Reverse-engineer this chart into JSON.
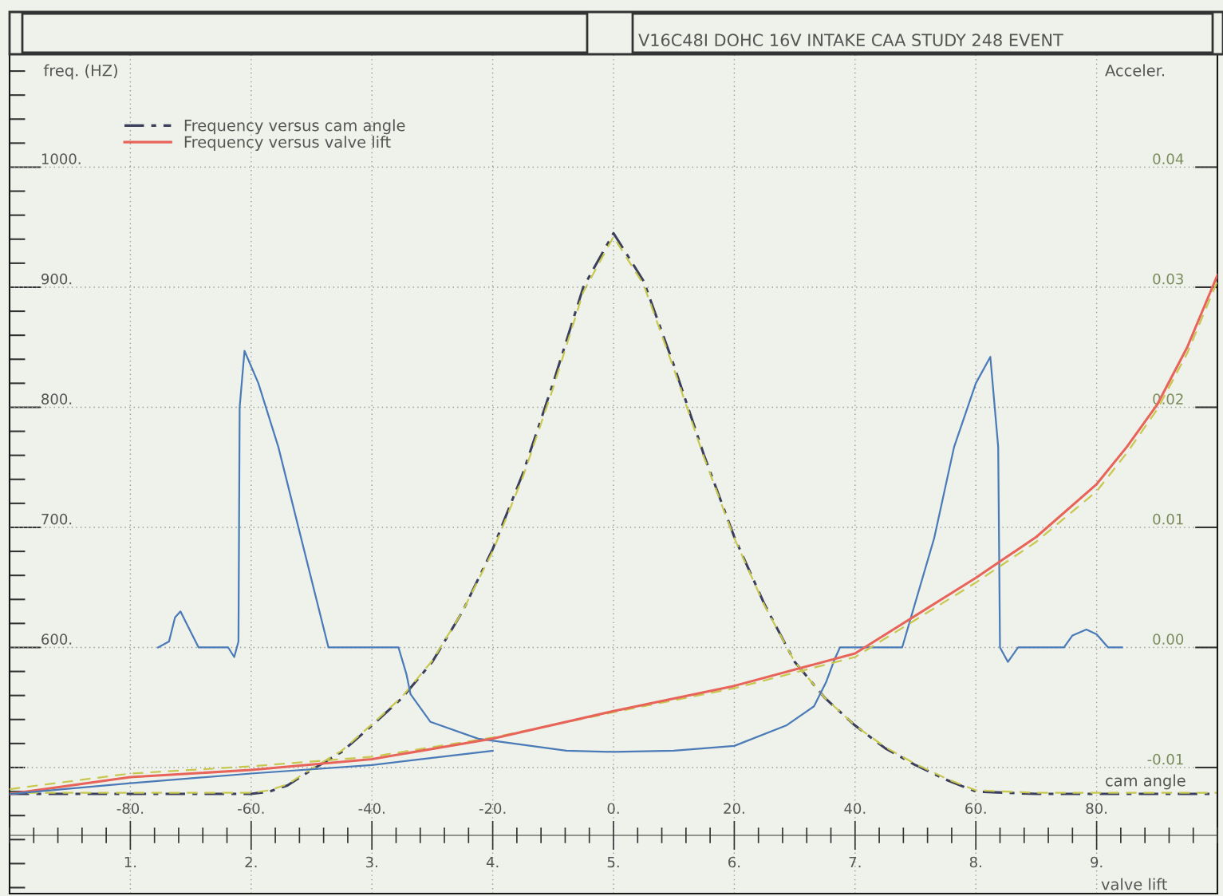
{
  "chart_data": {
    "type": "line",
    "title": "V16C48I DOHC 16V INTAKE CAA STUDY 248 EVENT",
    "xlabel": "cam angle",
    "x2label": "valve lift",
    "ylabel": "freq. (HZ)",
    "y2label": "Acceler.",
    "xlim": [
      -100,
      100
    ],
    "x2lim": [
      0,
      10
    ],
    "ylim": [
      395,
      1094
    ],
    "y2lim": [
      -0.0205,
      0.0494
    ],
    "xticks": [
      {
        "value": -80,
        "label": "-80."
      },
      {
        "value": -60,
        "label": "-60."
      },
      {
        "value": -40,
        "label": "-40."
      },
      {
        "value": -20,
        "label": "-20."
      },
      {
        "value": 0,
        "label": "0."
      },
      {
        "value": 20,
        "label": "20."
      },
      {
        "value": 40,
        "label": "40."
      },
      {
        "value": 60,
        "label": "60."
      },
      {
        "value": 80,
        "label": "80."
      }
    ],
    "x2ticks": [
      {
        "value": 1,
        "label": "1."
      },
      {
        "value": 2,
        "label": "2."
      },
      {
        "value": 3,
        "label": "3."
      },
      {
        "value": 4,
        "label": "4."
      },
      {
        "value": 5,
        "label": "5."
      },
      {
        "value": 6,
        "label": "6."
      },
      {
        "value": 7,
        "label": "7."
      },
      {
        "value": 8,
        "label": "8."
      },
      {
        "value": 9,
        "label": "9."
      }
    ],
    "yticks": [
      {
        "value": 600,
        "label": "600."
      },
      {
        "value": 700,
        "label": "700."
      },
      {
        "value": 800,
        "label": "800."
      },
      {
        "value": 900,
        "label": "900."
      },
      {
        "value": 1000,
        "label": "1000."
      }
    ],
    "y2ticks": [
      {
        "value": -0.01,
        "label": "-0.01"
      },
      {
        "value": 0,
        "label": "0.00"
      },
      {
        "value": 0.01,
        "label": "0.01"
      },
      {
        "value": 0.02,
        "label": "0.02"
      },
      {
        "value": 0.03,
        "label": "0.03"
      },
      {
        "value": 0.04,
        "label": "0.04"
      }
    ],
    "grid": true,
    "legend": "top left",
    "series": [
      {
        "name": "Frequency versus cam angle",
        "color": "#3b3f5c",
        "line_style": "dashdot",
        "x": [
          -100,
          -90,
          -80,
          -70,
          -60,
          -57,
          -54,
          -50,
          -45,
          -40,
          -35,
          -30,
          -25,
          -20,
          -15,
          -10,
          -5,
          0,
          5,
          10,
          15,
          20,
          25,
          30,
          35,
          40,
          45,
          50,
          55,
          58,
          60,
          70,
          80,
          90,
          100
        ],
        "values": [
          478,
          478,
          478,
          478,
          478,
          480,
          485,
          498,
          513,
          535,
          558,
          588,
          630,
          682,
          745,
          820,
          900,
          945,
          905,
          835,
          760,
          692,
          636,
          588,
          558,
          535,
          516,
          502,
          490,
          484,
          480,
          478,
          478,
          478,
          478
        ]
      },
      {
        "color": "#c8c850",
        "line_style": "dashed",
        "x": [
          -100,
          -90,
          -80,
          -70,
          -60,
          -57,
          -54,
          -50,
          -45,
          -40,
          -35,
          -30,
          -25,
          -20,
          -15,
          -10,
          -5,
          0,
          5,
          10,
          15,
          20,
          25,
          30,
          35,
          40,
          45,
          50,
          55,
          58,
          60,
          70,
          80,
          90,
          100
        ],
        "values": [
          479,
          479,
          479,
          479,
          479,
          481,
          486,
          499,
          514,
          536,
          559,
          589,
          630,
          680,
          742,
          816,
          896,
          942,
          902,
          832,
          758,
          691,
          635,
          588,
          558,
          535,
          517,
          503,
          491,
          485,
          481,
          479,
          479,
          479,
          479
        ]
      },
      {
        "color": "#c8c850",
        "line_style": "dashed",
        "axis": "x2",
        "x": [
          0,
          1,
          2,
          3,
          4,
          5,
          6,
          7,
          8,
          8.5,
          9,
          9.25,
          9.5,
          9.75,
          10
        ],
        "values": [
          482,
          495,
          501,
          509,
          525,
          546,
          566,
          592,
          654,
          688,
          730,
          762,
          798,
          845,
          905
        ]
      },
      {
        "name": "Frequency versus valve lift",
        "color": "#e8645a",
        "line_style": "solid",
        "axis": "x2",
        "x": [
          0,
          1,
          2,
          3,
          4,
          5,
          6,
          7,
          8,
          8.5,
          9,
          9.25,
          9.5,
          9.75,
          10
        ],
        "values": [
          478,
          492,
          498,
          507,
          524,
          547,
          568,
          595,
          658,
          692,
          736,
          767,
          802,
          850,
          910
        ]
      },
      {
        "color": "#4a7ab8",
        "line_style": "solid",
        "axis": "x2",
        "x": [
          0,
          1,
          2,
          3,
          3.5,
          4
        ],
        "values": [
          478,
          487,
          495,
          502,
          508,
          514
        ]
      },
      {
        "color": "#4a7ab8",
        "line_style": "solid",
        "axis": "y2",
        "x": [
          -75.4,
          -73.6,
          -72.6,
          -71.7,
          -70.5,
          -68.7,
          -63.8,
          -62.8,
          -62.1,
          -61.9,
          -61.1,
          -58.8,
          -55.5,
          -47.2,
          -35.6,
          -34.3,
          -33.6,
          -30.3,
          -22.4,
          -7.8,
          0,
          10,
          20,
          28.6,
          33.2,
          35.2,
          36.6,
          37.5,
          47.8,
          53.1,
          56.4,
          60,
          62.4,
          63.7,
          64,
          65.3,
          67,
          74.6,
          76,
          78.3,
          80,
          81.9,
          84.2
        ],
        "values": [
          0,
          0.0005,
          0.0025,
          0.003,
          0.0018,
          0,
          0,
          -0.0008,
          0.0005,
          0.02,
          0.0247,
          0.022,
          0.0167,
          0,
          0,
          -0.0022,
          -0.0039,
          -0.0062,
          -0.0076,
          -0.0086,
          -0.0087,
          -0.0086,
          -0.0082,
          -0.0065,
          -0.0049,
          -0.0029,
          -0.001,
          0,
          0,
          0.0091,
          0.0167,
          0.022,
          0.0242,
          0.0167,
          0,
          -0.0012,
          0,
          0,
          0.001,
          0.0015,
          0.0011,
          0,
          0
        ]
      }
    ]
  }
}
